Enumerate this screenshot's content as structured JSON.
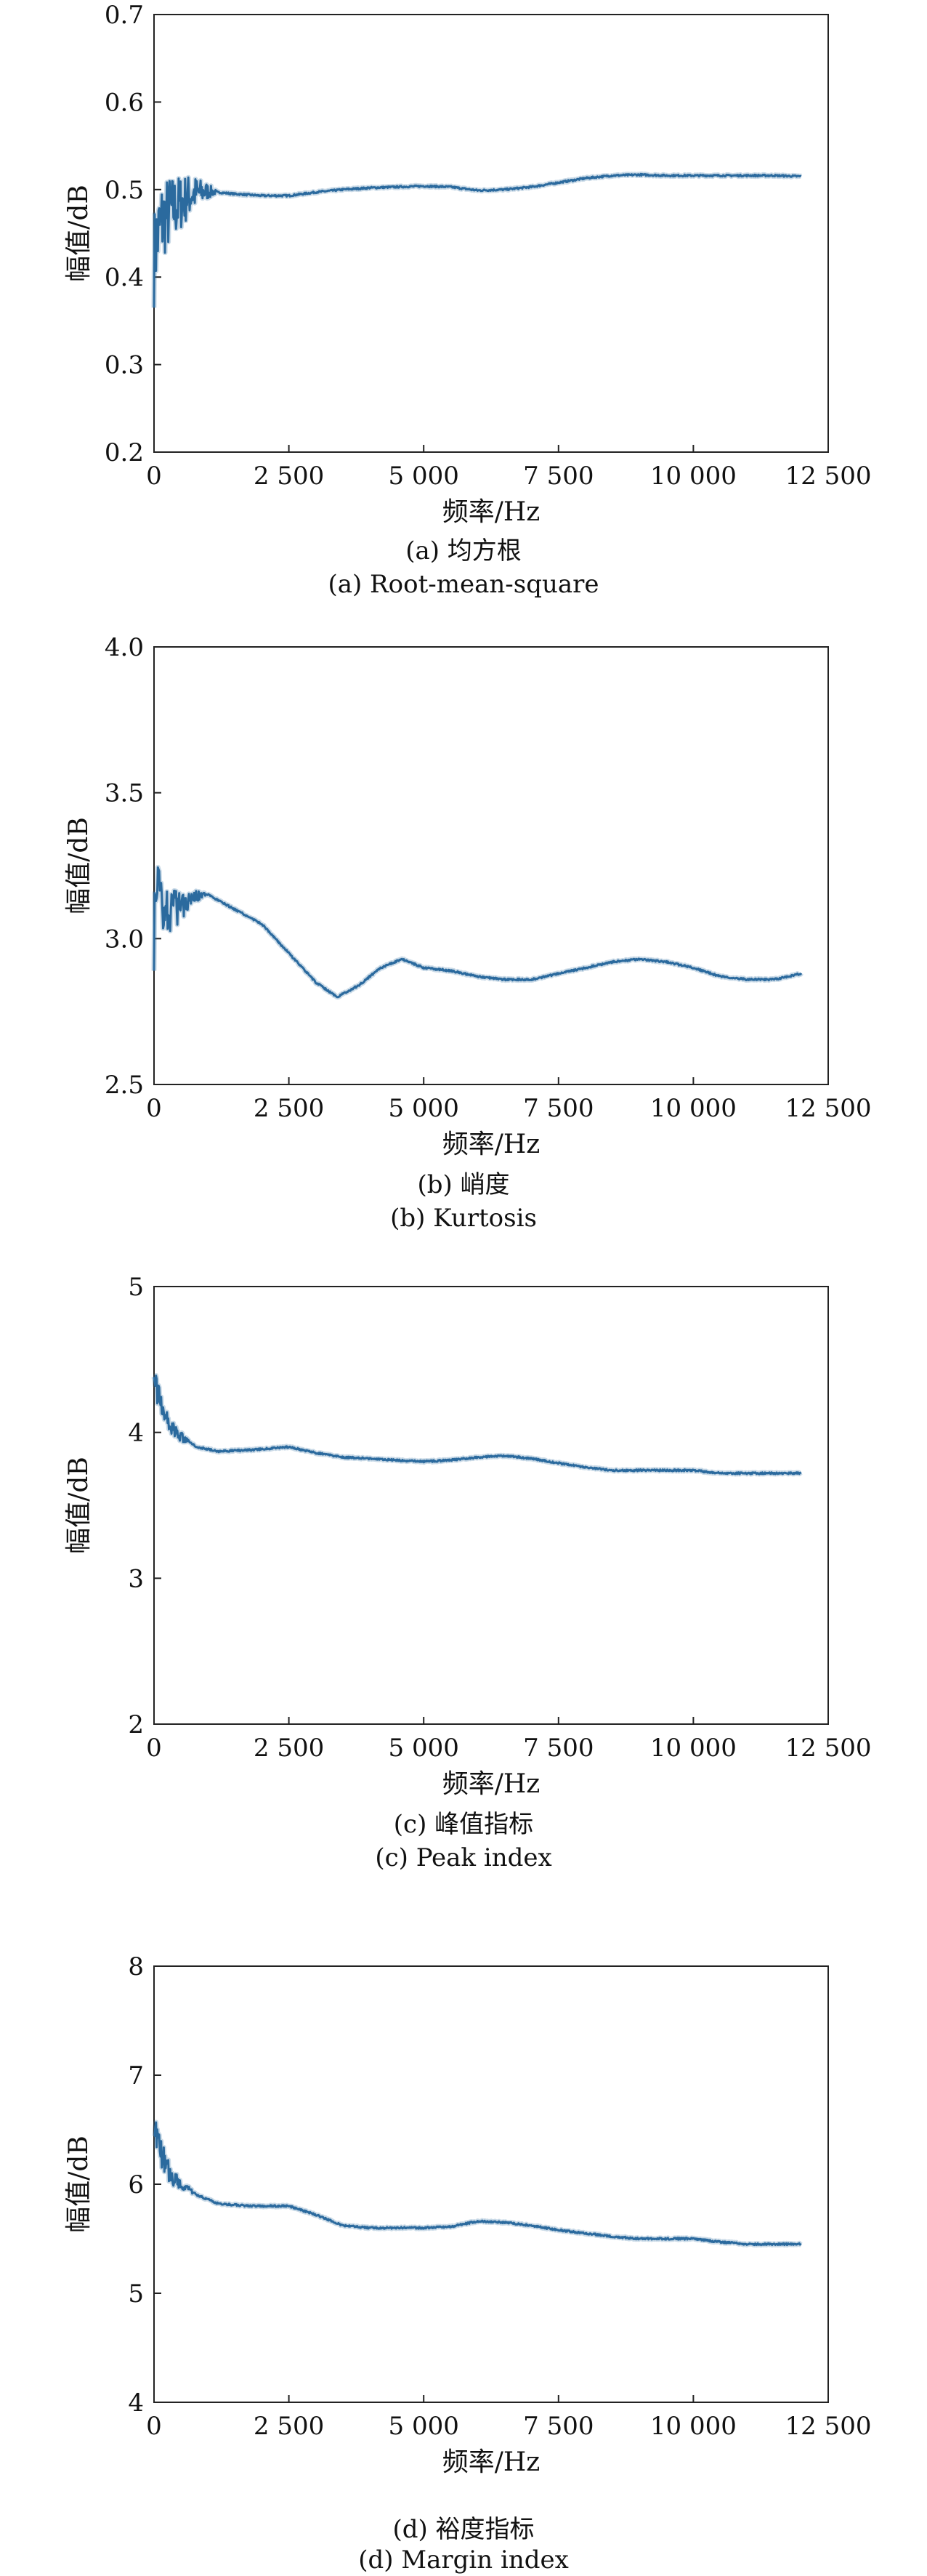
{
  "chart_data": [
    {
      "type": "line",
      "id": "a",
      "xlabel": "频率/Hz",
      "ylabel": "幅值/dB",
      "xlim": [
        0,
        12500
      ],
      "ylim": [
        0.2,
        0.7
      ],
      "xticks": [
        0,
        2500,
        5000,
        7500,
        10000,
        12500
      ],
      "xtick_labels": [
        "0",
        "2 500",
        "5 000",
        "7 500",
        "10 000",
        "12 500"
      ],
      "yticks": [
        0.2,
        0.3,
        0.4,
        0.5,
        0.6,
        0.7
      ],
      "ytick_labels": [
        "0.2",
        "0.3",
        "0.4",
        "0.5",
        "0.6",
        "0.7"
      ],
      "grid": false,
      "legend": "none",
      "color": "#2b6a9e",
      "noise": {
        "start": 0,
        "end": 1200,
        "amplitude": 0.055
      },
      "series": [
        {
          "x": [
            0,
            40,
            150,
            300,
            500,
            700,
            1000,
            1500,
            2000,
            2500,
            3000,
            3500,
            4000,
            4500,
            5000,
            5500,
            6000,
            6500,
            7000,
            7500,
            8000,
            8500,
            9000,
            9500,
            10000,
            10500,
            11000,
            11500,
            12000
          ],
          "y": [
            0.42,
            0.44,
            0.465,
            0.475,
            0.485,
            0.495,
            0.498,
            0.495,
            0.493,
            0.493,
            0.497,
            0.5,
            0.502,
            0.503,
            0.504,
            0.503,
            0.499,
            0.5,
            0.503,
            0.508,
            0.513,
            0.516,
            0.517,
            0.516,
            0.516,
            0.516,
            0.516,
            0.516,
            0.515
          ]
        }
      ]
    },
    {
      "type": "line",
      "id": "b",
      "xlabel": "频率/Hz",
      "ylabel": "幅值/dB",
      "xlim": [
        0,
        12500
      ],
      "ylim": [
        2.5,
        4.0
      ],
      "xticks": [
        0,
        2500,
        5000,
        7500,
        10000,
        12500
      ],
      "xtick_labels": [
        "0",
        "2 500",
        "5 000",
        "7 500",
        "10 000",
        "12 500"
      ],
      "yticks": [
        2.5,
        3.0,
        3.5,
        4.0
      ],
      "ytick_labels": [
        "2.5",
        "3.0",
        "3.5",
        "4.0"
      ],
      "grid": false,
      "legend": "none",
      "color": "#2b6a9e",
      "noise": {
        "start": 0,
        "end": 1000,
        "amplitude": 0.11
      },
      "series": [
        {
          "x": [
            0,
            50,
            200,
            400,
            700,
            1000,
            1500,
            2000,
            2500,
            3000,
            3400,
            3800,
            4200,
            4600,
            5000,
            5500,
            6000,
            6500,
            7000,
            7500,
            8000,
            8500,
            9000,
            9500,
            10000,
            10500,
            11000,
            11500,
            12000
          ],
          "y": [
            3.0,
            3.2,
            3.1,
            3.1,
            3.15,
            3.15,
            3.1,
            3.05,
            2.95,
            2.85,
            2.8,
            2.84,
            2.9,
            2.93,
            2.9,
            2.89,
            2.87,
            2.86,
            2.86,
            2.88,
            2.9,
            2.92,
            2.93,
            2.92,
            2.9,
            2.87,
            2.86,
            2.86,
            2.88
          ]
        }
      ]
    },
    {
      "type": "line",
      "id": "c",
      "xlabel": "频率/Hz",
      "ylabel": "幅值/dB",
      "xlim": [
        0,
        12500
      ],
      "ylim": [
        2,
        5
      ],
      "xticks": [
        0,
        2500,
        5000,
        7500,
        10000,
        12500
      ],
      "xtick_labels": [
        "0",
        "2 500",
        "5 000",
        "7 500",
        "10 000",
        "12 500"
      ],
      "yticks": [
        2,
        3,
        4,
        5
      ],
      "ytick_labels": [
        "2",
        "3",
        "4",
        "5"
      ],
      "grid": false,
      "legend": "none",
      "color": "#2b6a9e",
      "noise": {
        "start": 0,
        "end": 700,
        "amplitude": 0.12
      },
      "series": [
        {
          "x": [
            0,
            50,
            150,
            300,
            500,
            800,
            1200,
            1800,
            2500,
            3000,
            3500,
            4000,
            4500,
            5000,
            5500,
            6000,
            6500,
            7000,
            7500,
            8000,
            8500,
            9000,
            9500,
            10000,
            10500,
            11000,
            11500,
            12000
          ],
          "y": [
            4.5,
            4.3,
            4.15,
            4.05,
            3.97,
            3.9,
            3.87,
            3.88,
            3.9,
            3.86,
            3.83,
            3.82,
            3.81,
            3.8,
            3.81,
            3.83,
            3.84,
            3.82,
            3.79,
            3.76,
            3.74,
            3.74,
            3.74,
            3.74,
            3.72,
            3.72,
            3.72,
            3.72
          ]
        }
      ]
    },
    {
      "type": "line",
      "id": "d",
      "xlabel": "频率/Hz",
      "ylabel": "幅值/dB",
      "xlim": [
        0,
        12500
      ],
      "ylim": [
        4,
        8
      ],
      "xticks": [
        0,
        2500,
        5000,
        7500,
        10000,
        12500
      ],
      "xtick_labels": [
        "0",
        "2 500",
        "5 000",
        "7 500",
        "10 000",
        "12 500"
      ],
      "yticks": [
        4,
        5,
        6,
        7,
        8
      ],
      "ytick_labels": [
        "4",
        "5",
        "6",
        "7",
        "8"
      ],
      "grid": false,
      "legend": "none",
      "color": "#2b6a9e",
      "noise": {
        "start": 0,
        "end": 800,
        "amplitude": 0.16
      },
      "series": [
        {
          "x": [
            0,
            50,
            150,
            300,
            500,
            800,
            1200,
            1800,
            2500,
            3000,
            3500,
            4000,
            4500,
            5000,
            5500,
            6000,
            6500,
            7000,
            7500,
            8000,
            8500,
            9000,
            9500,
            10000,
            10500,
            11000,
            11500,
            12000
          ],
          "y": [
            6.6,
            6.4,
            6.25,
            6.1,
            6.0,
            5.9,
            5.82,
            5.8,
            5.8,
            5.72,
            5.62,
            5.6,
            5.6,
            5.6,
            5.61,
            5.66,
            5.65,
            5.62,
            5.58,
            5.55,
            5.52,
            5.5,
            5.5,
            5.5,
            5.47,
            5.45,
            5.45,
            5.45
          ]
        }
      ]
    }
  ],
  "captions": [
    {
      "cn": "(a) 均方根",
      "en": "(a) Root-mean-square"
    },
    {
      "cn": "(b) 峭度",
      "en": "(b) Kurtosis"
    },
    {
      "cn": "(c) 峰值指标",
      "en": "(c) Peak index"
    },
    {
      "cn": "(d) 裕度指标",
      "en": "(d) Margin index"
    }
  ]
}
